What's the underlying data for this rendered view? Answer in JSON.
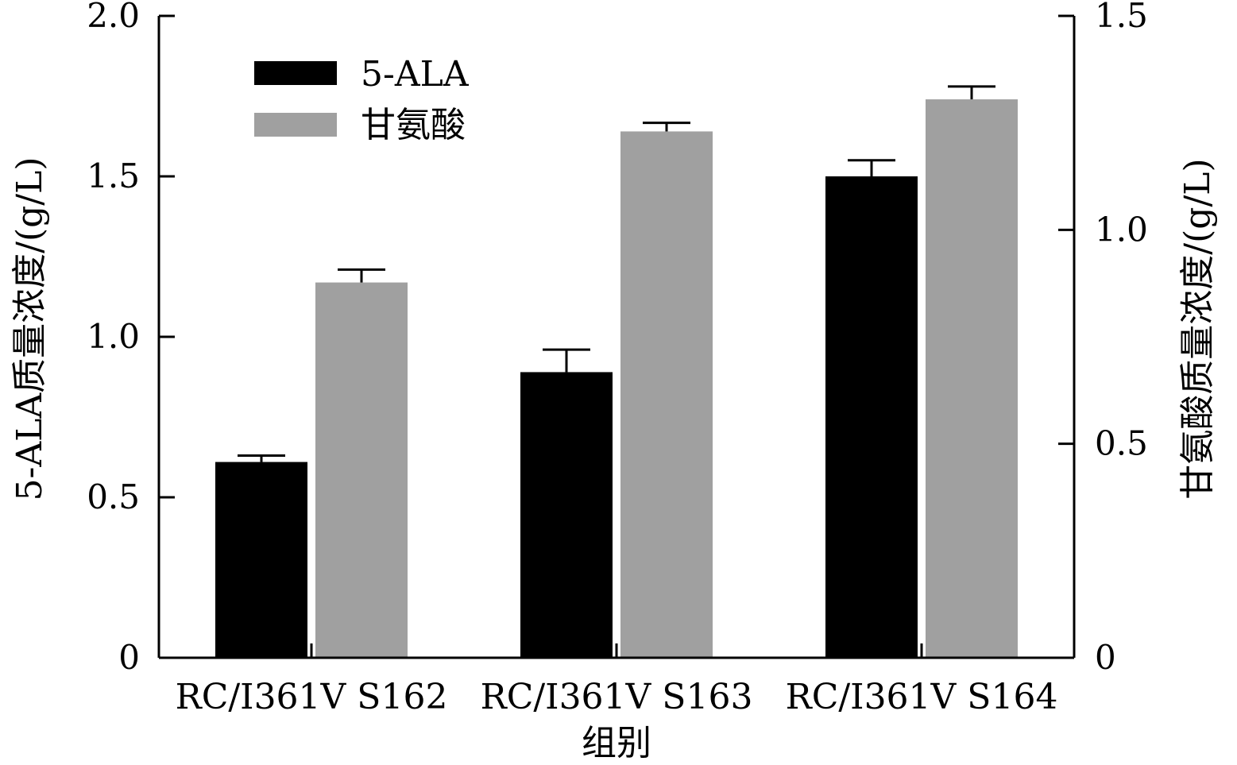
{
  "chart_data": {
    "type": "bar",
    "categories": [
      "RC/I361V S162",
      "RC/I361V S163",
      "RC/I361V S164"
    ],
    "xlabel": "组别",
    "ylabel_left": "5-ALA质量浓度/(g/L)",
    "ylabel_right": "甘氨酸质量浓度/(g/L)",
    "y_left": {
      "min": 0,
      "max": 2.0,
      "ticks": [
        0,
        0.5,
        1.0,
        1.5,
        2.0
      ],
      "tick_labels": [
        "0",
        "0.5",
        "1.0",
        "1.5",
        "2.0"
      ]
    },
    "y_right": {
      "min": 0,
      "max": 1.5,
      "ticks": [
        0,
        0.5,
        1.0,
        1.5
      ],
      "tick_labels": [
        "0",
        "0.5",
        "1.0",
        "1.5"
      ]
    },
    "series": [
      {
        "name": "5-ALA",
        "axis": "left",
        "color": "#000000",
        "values": [
          0.61,
          0.89,
          1.5
        ],
        "errors": [
          0.02,
          0.07,
          0.05
        ]
      },
      {
        "name": "甘氨酸",
        "axis": "right",
        "color": "#a0a0a0",
        "values": [
          0.877,
          1.23,
          1.305
        ],
        "errors": [
          0.03,
          0.02,
          0.03
        ]
      }
    ],
    "legend_position": "top-left",
    "grid": false
  }
}
